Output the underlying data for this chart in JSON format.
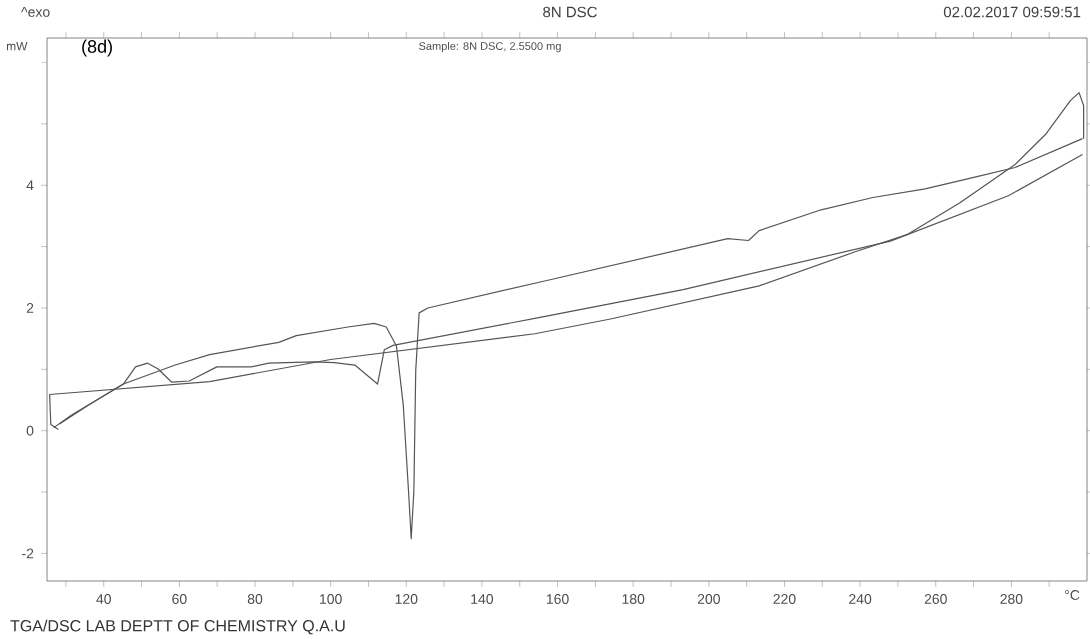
{
  "chart_data": {
    "type": "line",
    "title": "8N DSC",
    "ylabel": "mW",
    "xlabel": "°C",
    "annotations": [
      "^exo",
      "02.02.2017 09:59:51",
      "Sample: 8N DSC, 2.5500 mg",
      "(8d)",
      "TGA/DSC LAB DEPTT OF CHEMISTRY Q.A.U"
    ],
    "xlim": [
      25,
      300
    ],
    "ylim": [
      -2.45,
      6.4
    ],
    "xticks": [
      {
        "value": 30,
        "label": null
      },
      40,
      {
        "value": 50,
        "label": null
      },
      60,
      {
        "value": 70,
        "label": null
      },
      80,
      {
        "value": 90,
        "label": null
      },
      100,
      {
        "value": 110,
        "label": null
      },
      120,
      {
        "value": 130,
        "label": null
      },
      140,
      {
        "value": 150,
        "label": null
      },
      160,
      {
        "value": 170,
        "label": null
      },
      180,
      {
        "value": 190,
        "label": null
      },
      200,
      {
        "value": 210,
        "label": null
      },
      220,
      {
        "value": 230,
        "label": null
      },
      240,
      {
        "value": 250,
        "label": null
      },
      260,
      {
        "value": 270,
        "label": null
      },
      280,
      {
        "value": 290,
        "label": null
      }
    ],
    "yticks": [
      -2,
      {
        "value": -1,
        "label": null
      },
      0,
      {
        "value": 1,
        "label": null
      },
      2,
      {
        "value": 3,
        "label": null
      },
      4,
      {
        "value": 5,
        "label": null
      },
      {
        "value": 6,
        "label": null
      }
    ],
    "grid": false,
    "marker": "none",
    "line_style": "solid",
    "series": [
      {
        "color": "#555555",
        "x": [
          26.8,
          31.4,
          45.2,
          58.9,
          68,
          86.3,
          90.9,
          104.6,
          111.5,
          114.7,
          117.4,
          119.2,
          120.6,
          121.3,
          122,
          122.5,
          123.4,
          125.7,
          156.6,
          205,
          210.5,
          213.3,
          229.7,
          243.4,
          257.2,
          270.9,
          281,
          298.8
        ],
        "values": [
          0.05,
          0.25,
          0.76,
          1.07,
          1.24,
          1.44,
          1.55,
          1.69,
          1.75,
          1.69,
          1.38,
          0.42,
          -0.99,
          -1.76,
          -0.99,
          0.98,
          1.92,
          2.0,
          2.44,
          3.13,
          3.1,
          3.26,
          3.6,
          3.8,
          3.94,
          4.14,
          4.29,
          4.76
        ]
      },
      {
        "color": "#555555",
        "x": [
          28.3,
          36,
          45.2,
          48.4,
          51.6,
          54.3,
          58,
          62.6,
          69.9,
          79,
          83.6,
          95.5,
          101,
          106.4,
          112.4,
          114.2,
          116.5,
          154,
          193.2,
          248,
          279.2,
          298.8
        ],
        "values": [
          0.11,
          0.42,
          0.76,
          1.04,
          1.1,
          1.01,
          0.79,
          0.81,
          1.04,
          1.04,
          1.1,
          1.12,
          1.11,
          1.07,
          0.76,
          1.32,
          1.39,
          1.83,
          2.3,
          3.09,
          3.83,
          4.5
        ]
      },
      {
        "color": "#555555",
        "x": [
          28,
          26,
          25.7,
          68,
          100,
          154,
          174,
          213.3,
          238.9,
          252.6,
          266.3,
          281,
          289.2,
          295.6,
          297.9,
          299.1,
          299.1
        ],
        "values": [
          0.02,
          0.1,
          0.59,
          0.8,
          1.16,
          1.58,
          1.82,
          2.36,
          2.92,
          3.2,
          3.71,
          4.34,
          4.84,
          5.38,
          5.51,
          5.3,
          4.76
        ]
      }
    ]
  }
}
